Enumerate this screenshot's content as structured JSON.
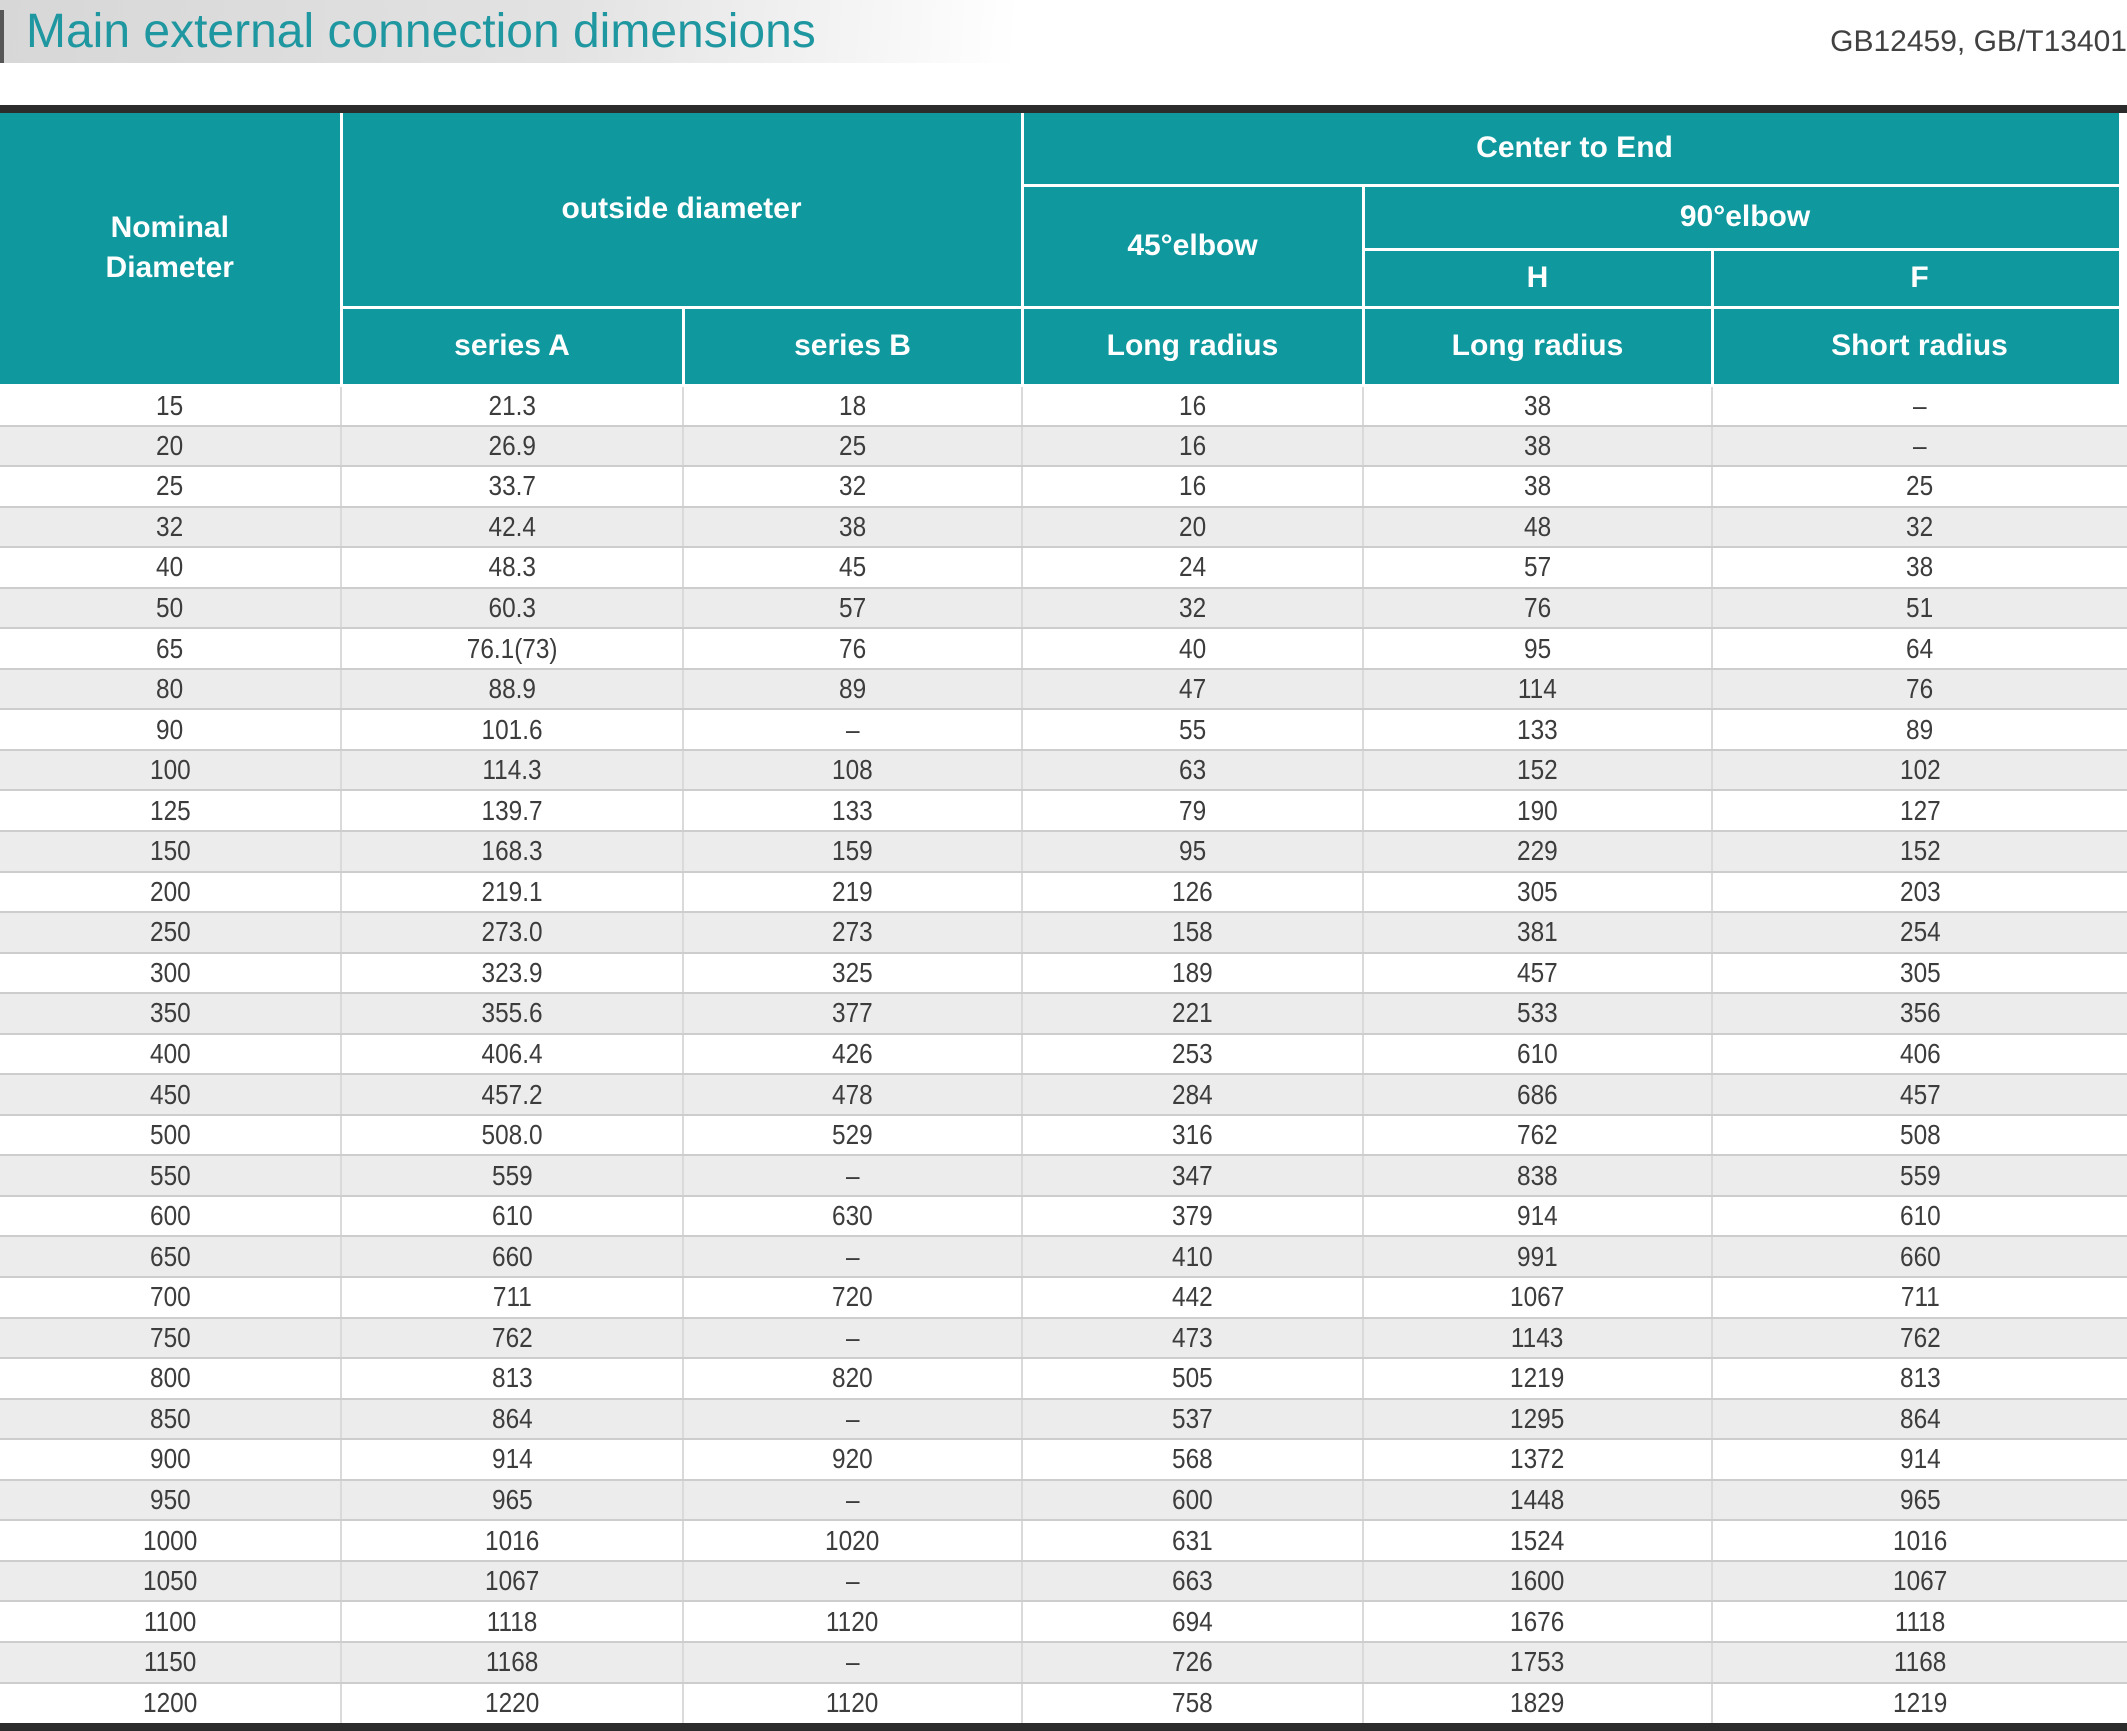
{
  "page": {
    "title": "Main external connection dimensions",
    "standard_ref": "GB12459, GB/T13401"
  },
  "table": {
    "header": {
      "nominal_diameter": "Nominal\nDiameter",
      "outside_diameter": "outside diameter",
      "center_to_end": "Center to End",
      "elbow_45": "45°elbow",
      "elbow_90": "90°elbow",
      "h": "H",
      "f": "F",
      "series_a": "series A",
      "series_b": "series B",
      "long_radius_45": "Long radius",
      "long_radius_h": "Long radius",
      "short_radius_f": "Short radius"
    },
    "rows": [
      [
        "15",
        "21.3",
        "18",
        "16",
        "38",
        "–"
      ],
      [
        "20",
        "26.9",
        "25",
        "16",
        "38",
        "–"
      ],
      [
        "25",
        "33.7",
        "32",
        "16",
        "38",
        "25"
      ],
      [
        "32",
        "42.4",
        "38",
        "20",
        "48",
        "32"
      ],
      [
        "40",
        "48.3",
        "45",
        "24",
        "57",
        "38"
      ],
      [
        "50",
        "60.3",
        "57",
        "32",
        "76",
        "51"
      ],
      [
        "65",
        "76.1(73)",
        "76",
        "40",
        "95",
        "64"
      ],
      [
        "80",
        "88.9",
        "89",
        "47",
        "114",
        "76"
      ],
      [
        "90",
        "101.6",
        "–",
        "55",
        "133",
        "89"
      ],
      [
        "100",
        "114.3",
        "108",
        "63",
        "152",
        "102"
      ],
      [
        "125",
        "139.7",
        "133",
        "79",
        "190",
        "127"
      ],
      [
        "150",
        "168.3",
        "159",
        "95",
        "229",
        "152"
      ],
      [
        "200",
        "219.1",
        "219",
        "126",
        "305",
        "203"
      ],
      [
        "250",
        "273.0",
        "273",
        "158",
        "381",
        "254"
      ],
      [
        "300",
        "323.9",
        "325",
        "189",
        "457",
        "305"
      ],
      [
        "350",
        "355.6",
        "377",
        "221",
        "533",
        "356"
      ],
      [
        "400",
        "406.4",
        "426",
        "253",
        "610",
        "406"
      ],
      [
        "450",
        "457.2",
        "478",
        "284",
        "686",
        "457"
      ],
      [
        "500",
        "508.0",
        "529",
        "316",
        "762",
        "508"
      ],
      [
        "550",
        "559",
        "–",
        "347",
        "838",
        "559"
      ],
      [
        "600",
        "610",
        "630",
        "379",
        "914",
        "610"
      ],
      [
        "650",
        "660",
        "–",
        "410",
        "991",
        "660"
      ],
      [
        "700",
        "711",
        "720",
        "442",
        "1067",
        "711"
      ],
      [
        "750",
        "762",
        "–",
        "473",
        "1143",
        "762"
      ],
      [
        "800",
        "813",
        "820",
        "505",
        "1219",
        "813"
      ],
      [
        "850",
        "864",
        "–",
        "537",
        "1295",
        "864"
      ],
      [
        "900",
        "914",
        "920",
        "568",
        "1372",
        "914"
      ],
      [
        "950",
        "965",
        "–",
        "600",
        "1448",
        "965"
      ],
      [
        "1000",
        "1016",
        "1020",
        "631",
        "1524",
        "1016"
      ],
      [
        "1050",
        "1067",
        "–",
        "663",
        "1600",
        "1067"
      ],
      [
        "1100",
        "1118",
        "1120",
        "694",
        "1676",
        "1118"
      ],
      [
        "1150",
        "1168",
        "–",
        "726",
        "1753",
        "1168"
      ],
      [
        "1200",
        "1220",
        "1120",
        "758",
        "1829",
        "1219"
      ]
    ]
  },
  "colors": {
    "accent_teal": "#0f989e",
    "title_teal": "#1f97a0",
    "row_alt_gray": "#ececec",
    "dark_bar": "#2c2c2c"
  }
}
